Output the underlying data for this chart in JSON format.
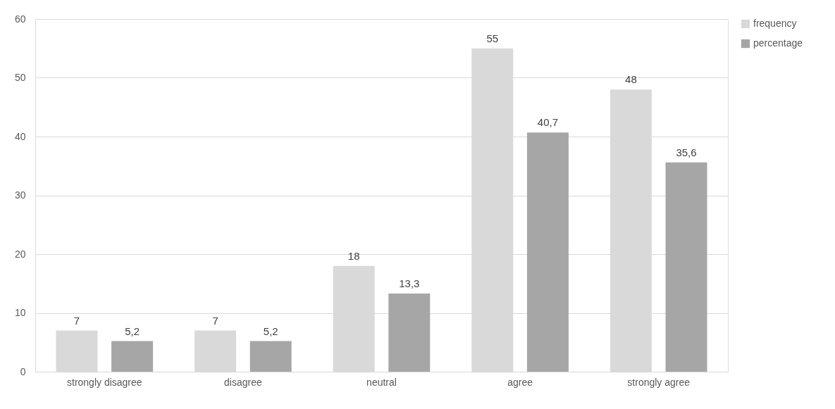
{
  "chart_data": {
    "type": "bar",
    "categories": [
      "strongly disagree",
      "disagree",
      "neutral",
      "agree",
      "strongly agree"
    ],
    "series": [
      {
        "name": "frequency",
        "color": "#d9d9d9",
        "values": [
          7,
          7,
          18,
          55,
          48
        ],
        "value_labels": [
          "7",
          "7",
          "18",
          "55",
          "48"
        ]
      },
      {
        "name": "percentage",
        "color": "#a6a6a6",
        "values": [
          5.2,
          5.2,
          13.3,
          40.7,
          35.6
        ],
        "value_labels": [
          "5,2",
          "5,2",
          "13,3",
          "40,7",
          "35,6"
        ]
      }
    ],
    "ylim": [
      0,
      60
    ],
    "yticks": [
      0,
      10,
      20,
      30,
      40,
      50,
      60
    ],
    "grid": "y",
    "legend": "right"
  }
}
